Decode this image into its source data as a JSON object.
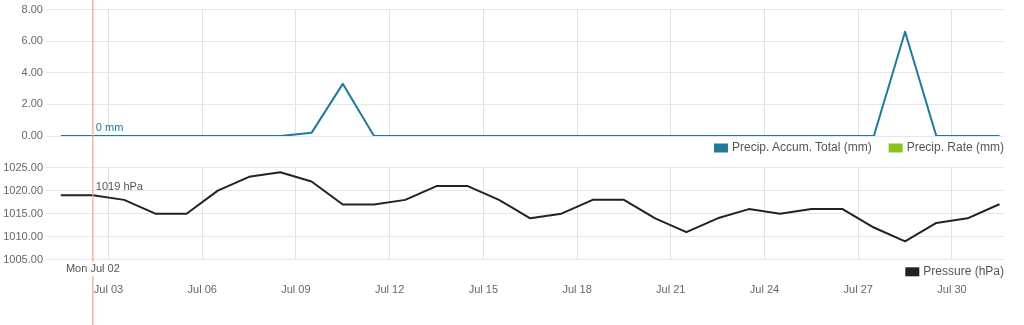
{
  "chart_data": [
    {
      "type": "line",
      "x": [
        "--07-01T12:00",
        "--07-02T12:00",
        "--07-03T12:00",
        "--07-04T12:00",
        "--07-05T12:00",
        "--07-06T12:00",
        "--07-07T12:00",
        "--07-08T12:00",
        "--07-09T12:00",
        "--07-10T12:00",
        "--07-11T12:00",
        "--07-12T12:00",
        "--07-13T12:00",
        "--07-14T12:00",
        "--07-15T12:00",
        "--07-16T12:00",
        "--07-17T12:00",
        "--07-18T12:00",
        "--07-19T12:00",
        "--07-20T12:00",
        "--07-21T12:00",
        "--07-22T12:00",
        "--07-23T12:00",
        "--07-24T12:00",
        "--07-25T12:00",
        "--07-26T12:00",
        "--07-27T12:00",
        "--07-28T12:00",
        "--07-29T12:00",
        "--07-30T12:00",
        "--07-31T12:00"
      ],
      "series": [
        {
          "name": "Precip. Accum. Total (mm)",
          "color": "#1f7a9c",
          "values": [
            0,
            0,
            0,
            0,
            0,
            0,
            0,
            0,
            0.2,
            3.3,
            0,
            0,
            0,
            0,
            0,
            0,
            0,
            0,
            0,
            0,
            0,
            0,
            0,
            0,
            0,
            0,
            0,
            6.6,
            0,
            0,
            0
          ]
        },
        {
          "name": "Precip. Rate (mm)",
          "color": "#8cc21f",
          "values": [
            null,
            null,
            null,
            null,
            null,
            null,
            null,
            null,
            null,
            null,
            null,
            null,
            null,
            null,
            null,
            null,
            null,
            null,
            null,
            null,
            null,
            null,
            null,
            null,
            null,
            null,
            null,
            null,
            null,
            null,
            null
          ]
        }
      ],
      "xlim": [
        "--07-01T00:00",
        "--07-31T16:00"
      ],
      "xticks": [
        {
          "value": "--07-03",
          "label": null
        },
        {
          "value": "--07-06",
          "label": null
        },
        {
          "value": "--07-09",
          "label": null
        },
        {
          "value": "--07-12",
          "label": null
        },
        {
          "value": "--07-15",
          "label": null
        },
        {
          "value": "--07-18",
          "label": null
        },
        {
          "value": "--07-21",
          "label": null
        },
        {
          "value": "--07-24",
          "label": null
        },
        {
          "value": "--07-27",
          "label": null
        },
        {
          "value": "--07-30",
          "label": null
        }
      ],
      "ylim": [
        0,
        8
      ],
      "yticks": [
        {
          "value": 0,
          "label": "0.00"
        },
        {
          "value": 2,
          "label": "2.00"
        },
        {
          "value": 4,
          "label": "4.00"
        },
        {
          "value": 6,
          "label": "6.00"
        },
        {
          "value": 8,
          "label": "8.00"
        }
      ],
      "tick_labels": "y",
      "grid": true,
      "legend": "bottom right",
      "marker": "none",
      "line_style": "solid",
      "ref_lines": [
        {
          "axis": "x",
          "value": "--07-02T12:00",
          "color": "#f4a37a"
        }
      ],
      "annotations": [
        {
          "text": "0 mm",
          "x": "--07-02T12:00",
          "y": 0
        }
      ]
    },
    {
      "type": "line",
      "x": [
        "--07-01T12:00",
        "--07-02T12:00",
        "--07-03T12:00",
        "--07-04T12:00",
        "--07-05T12:00",
        "--07-06T12:00",
        "--07-07T12:00",
        "--07-08T12:00",
        "--07-09T12:00",
        "--07-10T12:00",
        "--07-11T12:00",
        "--07-12T12:00",
        "--07-13T12:00",
        "--07-14T12:00",
        "--07-15T12:00",
        "--07-16T12:00",
        "--07-17T12:00",
        "--07-18T12:00",
        "--07-19T12:00",
        "--07-20T12:00",
        "--07-21T12:00",
        "--07-22T12:00",
        "--07-23T12:00",
        "--07-24T12:00",
        "--07-25T12:00",
        "--07-26T12:00",
        "--07-27T12:00",
        "--07-28T12:00",
        "--07-29T12:00",
        "--07-30T12:00",
        "--07-31T12:00"
      ],
      "series": [
        {
          "name": "Pressure (hPa)",
          "color": "#222222",
          "values": [
            1019,
            1019,
            1018,
            1015,
            1015,
            1020,
            1023,
            1024,
            1022,
            1017,
            1017,
            1018,
            1021,
            1021,
            1018,
            1014,
            1015,
            1018,
            1018,
            1014,
            1011,
            1014,
            1016,
            1015,
            1016,
            1016,
            1012,
            1009,
            1013,
            1014,
            1017
          ]
        }
      ],
      "xlim": [
        "--07-01T00:00",
        "--07-31T16:00"
      ],
      "xticks": [
        {
          "value": "--07-03",
          "label": "Jul 03"
        },
        {
          "value": "--07-06",
          "label": "Jul 06"
        },
        {
          "value": "--07-09",
          "label": "Jul 09"
        },
        {
          "value": "--07-12",
          "label": "Jul 12"
        },
        {
          "value": "--07-15",
          "label": "Jul 15"
        },
        {
          "value": "--07-18",
          "label": "Jul 18"
        },
        {
          "value": "--07-21",
          "label": "Jul 21"
        },
        {
          "value": "--07-24",
          "label": "Jul 24"
        },
        {
          "value": "--07-27",
          "label": "Jul 27"
        },
        {
          "value": "--07-30",
          "label": "Jul 30"
        }
      ],
      "ylim": [
        1005,
        1025
      ],
      "yticks": [
        {
          "value": 1005,
          "label": "1005.00"
        },
        {
          "value": 1010,
          "label": "1010.00"
        },
        {
          "value": 1015,
          "label": "1015.00"
        },
        {
          "value": 1020,
          "label": "1020.00"
        },
        {
          "value": 1025,
          "label": "1025.00"
        }
      ],
      "grid": true,
      "legend": "bottom right",
      "marker": "none",
      "line_style": "solid",
      "ref_lines": [
        {
          "axis": "x",
          "value": "--07-02T12:00",
          "label": "Mon Jul 02",
          "color": "#f4a37a"
        }
      ],
      "annotations": [
        {
          "text": "1019 hPa",
          "x": "--07-02T12:00",
          "y": 1019
        }
      ]
    }
  ]
}
